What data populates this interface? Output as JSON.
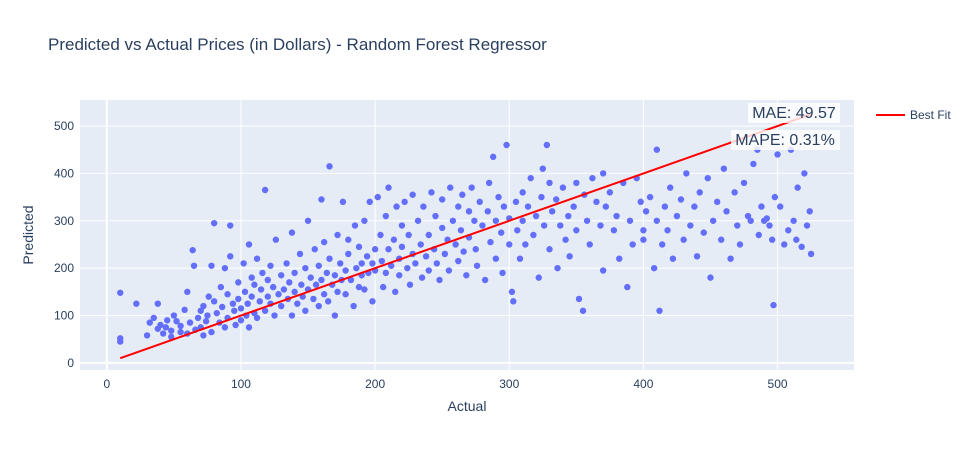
{
  "chart_data": {
    "type": "scatter",
    "title": "Predicted vs Actual Prices (in Dollars) - Random Forest Regressor",
    "xlabel": "Actual",
    "ylabel": "Predicted",
    "xlim": [
      -20,
      557
    ],
    "ylim": [
      -15,
      555
    ],
    "xticks": [
      0,
      100,
      200,
      300,
      400,
      500
    ],
    "yticks": [
      0,
      100,
      200,
      300,
      400,
      500
    ],
    "grid": true,
    "legend": {
      "position": "top-right",
      "entries": [
        "Best Fit"
      ]
    },
    "series": [
      {
        "type": "line",
        "name": "Best Fit",
        "color": "#ff0000",
        "x": [
          10,
          525
        ],
        "y": [
          10,
          525
        ]
      },
      {
        "type": "scatter",
        "color": "#636efa",
        "points": [
          [
            10,
            148
          ],
          [
            10,
            52
          ],
          [
            10,
            45
          ],
          [
            22,
            125
          ],
          [
            30,
            58
          ],
          [
            32,
            85
          ],
          [
            35,
            95
          ],
          [
            38,
            72
          ],
          [
            38,
            125
          ],
          [
            40,
            80
          ],
          [
            42,
            62
          ],
          [
            44,
            75
          ],
          [
            45,
            90
          ],
          [
            48,
            55
          ],
          [
            48,
            68
          ],
          [
            50,
            100
          ],
          [
            52,
            88
          ],
          [
            55,
            65
          ],
          [
            55,
            78
          ],
          [
            58,
            112
          ],
          [
            60,
            150
          ],
          [
            60,
            62
          ],
          [
            62,
            85
          ],
          [
            64,
            238
          ],
          [
            65,
            205
          ],
          [
            66,
            70
          ],
          [
            68,
            95
          ],
          [
            70,
            110
          ],
          [
            70,
            75
          ],
          [
            72,
            120
          ],
          [
            72,
            58
          ],
          [
            74,
            88
          ],
          [
            75,
            100
          ],
          [
            76,
            140
          ],
          [
            78,
            65
          ],
          [
            78,
            205
          ],
          [
            80,
            295
          ],
          [
            80,
            130
          ],
          [
            82,
            105
          ],
          [
            84,
            85
          ],
          [
            85,
            160
          ],
          [
            86,
            118
          ],
          [
            88,
            75
          ],
          [
            88,
            200
          ],
          [
            90,
            145
          ],
          [
            90,
            95
          ],
          [
            92,
            290
          ],
          [
            92,
            225
          ],
          [
            94,
            125
          ],
          [
            95,
            110
          ],
          [
            96,
            80
          ],
          [
            98,
            170
          ],
          [
            98,
            135
          ],
          [
            100,
            115
          ],
          [
            100,
            90
          ],
          [
            102,
            210
          ],
          [
            103,
            150
          ],
          [
            104,
            100
          ],
          [
            105,
            125
          ],
          [
            106,
            250
          ],
          [
            106,
            75
          ],
          [
            108,
            140
          ],
          [
            108,
            180
          ],
          [
            110,
            105
          ],
          [
            110,
            165
          ],
          [
            112,
            220
          ],
          [
            112,
            95
          ],
          [
            114,
            130
          ],
          [
            115,
            155
          ],
          [
            116,
            190
          ],
          [
            118,
            365
          ],
          [
            118,
            110
          ],
          [
            120,
            140
          ],
          [
            120,
            175
          ],
          [
            122,
            125
          ],
          [
            122,
            205
          ],
          [
            124,
            160
          ],
          [
            125,
            100
          ],
          [
            126,
            260
          ],
          [
            128,
            145
          ],
          [
            130,
            185
          ],
          [
            130,
            120
          ],
          [
            132,
            155
          ],
          [
            134,
            210
          ],
          [
            135,
            135
          ],
          [
            136,
            170
          ],
          [
            138,
            275
          ],
          [
            138,
            100
          ],
          [
            140,
            150
          ],
          [
            140,
            190
          ],
          [
            142,
            125
          ],
          [
            144,
            230
          ],
          [
            145,
            165
          ],
          [
            146,
            140
          ],
          [
            148,
            200
          ],
          [
            148,
            110
          ],
          [
            150,
            300
          ],
          [
            150,
            155
          ],
          [
            152,
            180
          ],
          [
            154,
            135
          ],
          [
            155,
            240
          ],
          [
            156,
            165
          ],
          [
            158,
            120
          ],
          [
            158,
            205
          ],
          [
            160,
            345
          ],
          [
            160,
            175
          ],
          [
            162,
            145
          ],
          [
            162,
            255
          ],
          [
            164,
            190
          ],
          [
            165,
            130
          ],
          [
            166,
            415
          ],
          [
            166,
            220
          ],
          [
            168,
            165
          ],
          [
            170,
            185
          ],
          [
            170,
            100
          ],
          [
            172,
            270
          ],
          [
            172,
            150
          ],
          [
            174,
            210
          ],
          [
            175,
            175
          ],
          [
            176,
            340
          ],
          [
            178,
            195
          ],
          [
            178,
            145
          ],
          [
            180,
            230
          ],
          [
            180,
            260
          ],
          [
            182,
            175
          ],
          [
            184,
            120
          ],
          [
            185,
            290
          ],
          [
            186,
            200
          ],
          [
            188,
            160
          ],
          [
            188,
            245
          ],
          [
            190,
            210
          ],
          [
            190,
            185
          ],
          [
            192,
            300
          ],
          [
            192,
            155
          ],
          [
            194,
            225
          ],
          [
            195,
            190
          ],
          [
            196,
            340
          ],
          [
            198,
            210
          ],
          [
            198,
            130
          ],
          [
            200,
            240
          ],
          [
            200,
            195
          ],
          [
            202,
            350
          ],
          [
            204,
            270
          ],
          [
            205,
            215
          ],
          [
            206,
            160
          ],
          [
            208,
            310
          ],
          [
            208,
            190
          ],
          [
            210,
            240
          ],
          [
            210,
            370
          ],
          [
            212,
            205
          ],
          [
            214,
            260
          ],
          [
            215,
            150
          ],
          [
            216,
            330
          ],
          [
            218,
            220
          ],
          [
            218,
            185
          ],
          [
            220,
            290
          ],
          [
            220,
            245
          ],
          [
            222,
            340
          ],
          [
            224,
            200
          ],
          [
            225,
            270
          ],
          [
            226,
            165
          ],
          [
            228,
            355
          ],
          [
            228,
            230
          ],
          [
            230,
            210
          ],
          [
            232,
            300
          ],
          [
            234,
            250
          ],
          [
            235,
            180
          ],
          [
            236,
            330
          ],
          [
            238,
            225
          ],
          [
            240,
            270
          ],
          [
            240,
            195
          ],
          [
            242,
            360
          ],
          [
            244,
            240
          ],
          [
            245,
            310
          ],
          [
            246,
            210
          ],
          [
            248,
            175
          ],
          [
            250,
            285
          ],
          [
            250,
            345
          ],
          [
            252,
            230
          ],
          [
            254,
            260
          ],
          [
            255,
            195
          ],
          [
            256,
            370
          ],
          [
            258,
            300
          ],
          [
            260,
            250
          ],
          [
            262,
            215
          ],
          [
            262,
            330
          ],
          [
            264,
            280
          ],
          [
            265,
            355
          ],
          [
            266,
            235
          ],
          [
            268,
            185
          ],
          [
            270,
            320
          ],
          [
            270,
            265
          ],
          [
            272,
            370
          ],
          [
            274,
            300
          ],
          [
            275,
            240
          ],
          [
            276,
            205
          ],
          [
            278,
            340
          ],
          [
            280,
            290
          ],
          [
            282,
            175
          ],
          [
            284,
            320
          ],
          [
            285,
            380
          ],
          [
            286,
            255
          ],
          [
            288,
            435
          ],
          [
            290,
            300
          ],
          [
            290,
            220
          ],
          [
            292,
            350
          ],
          [
            294,
            275
          ],
          [
            295,
            190
          ],
          [
            296,
            330
          ],
          [
            298,
            460
          ],
          [
            300,
            305
          ],
          [
            300,
            250
          ],
          [
            302,
            150
          ],
          [
            303,
            130
          ],
          [
            305,
            340
          ],
          [
            306,
            280
          ],
          [
            308,
            220
          ],
          [
            310,
            360
          ],
          [
            310,
            300
          ],
          [
            312,
            250
          ],
          [
            314,
            330
          ],
          [
            316,
            390
          ],
          [
            318,
            270
          ],
          [
            320,
            310
          ],
          [
            322,
            180
          ],
          [
            324,
            350
          ],
          [
            325,
            410
          ],
          [
            326,
            290
          ],
          [
            328,
            460
          ],
          [
            330,
            380
          ],
          [
            330,
            240
          ],
          [
            332,
            320
          ],
          [
            335,
            345
          ],
          [
            336,
            200
          ],
          [
            338,
            290
          ],
          [
            340,
            370
          ],
          [
            342,
            260
          ],
          [
            344,
            310
          ],
          [
            345,
            225
          ],
          [
            348,
            330
          ],
          [
            350,
            380
          ],
          [
            350,
            280
          ],
          [
            352,
            135
          ],
          [
            355,
            110
          ],
          [
            356,
            355
          ],
          [
            358,
            300
          ],
          [
            360,
            250
          ],
          [
            362,
            390
          ],
          [
            365,
            340
          ],
          [
            368,
            290
          ],
          [
            370,
            400
          ],
          [
            370,
            195
          ],
          [
            372,
            330
          ],
          [
            375,
            360
          ],
          [
            378,
            280
          ],
          [
            380,
            310
          ],
          [
            382,
            220
          ],
          [
            385,
            380
          ],
          [
            388,
            160
          ],
          [
            390,
            300
          ],
          [
            392,
            250
          ],
          [
            395,
            390
          ],
          [
            398,
            340
          ],
          [
            400,
            280
          ],
          [
            400,
            260
          ],
          [
            402,
            320
          ],
          [
            405,
            350
          ],
          [
            408,
            200
          ],
          [
            410,
            450
          ],
          [
            410,
            300
          ],
          [
            412,
            110
          ],
          [
            414,
            250
          ],
          [
            416,
            330
          ],
          [
            418,
            280
          ],
          [
            420,
            370
          ],
          [
            422,
            220
          ],
          [
            425,
            310
          ],
          [
            428,
            345
          ],
          [
            430,
            260
          ],
          [
            432,
            400
          ],
          [
            435,
            290
          ],
          [
            438,
            330
          ],
          [
            440,
            225
          ],
          [
            442,
            360
          ],
          [
            445,
            275
          ],
          [
            448,
            390
          ],
          [
            450,
            180
          ],
          [
            452,
            300
          ],
          [
            455,
            340
          ],
          [
            458,
            260
          ],
          [
            460,
            410
          ],
          [
            462,
            320
          ],
          [
            465,
            220
          ],
          [
            468,
            360
          ],
          [
            470,
            290
          ],
          [
            472,
            250
          ],
          [
            475,
            380
          ],
          [
            478,
            310
          ],
          [
            480,
            300
          ],
          [
            482,
            420
          ],
          [
            485,
            450
          ],
          [
            486,
            270
          ],
          [
            488,
            330
          ],
          [
            490,
            300
          ],
          [
            492,
            305
          ],
          [
            494,
            290
          ],
          [
            496,
            260
          ],
          [
            497,
            122
          ],
          [
            498,
            350
          ],
          [
            500,
            440
          ],
          [
            502,
            330
          ],
          [
            505,
            250
          ],
          [
            508,
            280
          ],
          [
            510,
            450
          ],
          [
            512,
            300
          ],
          [
            514,
            260
          ],
          [
            515,
            370
          ],
          [
            518,
            245
          ],
          [
            520,
            400
          ],
          [
            522,
            290
          ],
          [
            524,
            320
          ],
          [
            525,
            230
          ]
        ]
      }
    ],
    "annotations": [
      "MAE: 49.57",
      "MAPE: 0.31%"
    ]
  }
}
